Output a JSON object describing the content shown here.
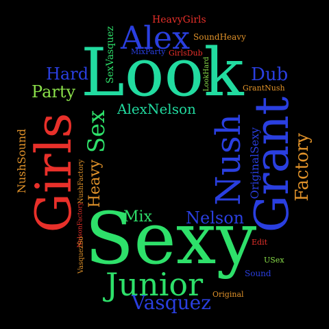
{
  "colors": {
    "background": "#000000",
    "red": "#e8302a",
    "green": "#2ee06a",
    "teal": "#22dba0",
    "blue": "#2a3fe0",
    "orange": "#e0922a",
    "lime": "#8be04a"
  },
  "words": {
    "look": "Look",
    "sexy": "Sexy",
    "girls": "Girls",
    "grant": "Grant",
    "nush": "Nush",
    "alex": "Alex",
    "junior": "Junior",
    "vasquez": "Vasquez",
    "sex": "Sex",
    "factory": "Factory",
    "alexnelson": "AlexNelson",
    "hard": "Hard",
    "party": "Party",
    "dub": "Dub",
    "nelson": "Nelson",
    "mix": "Mix",
    "heavy": "Heavy",
    "heavygirls": "HeavyGirls",
    "soundheavy": "SoundHeavy",
    "mixparty": "MixParty",
    "girlsdub": "GirlsDub",
    "sexvasquez": "SexVasquez",
    "lookhard": "LookHard",
    "grantnush": "GrantNush",
    "originalsexy": "OriginalSexy",
    "nushsound": "NushSound",
    "nushfactory": "NushFactory",
    "nelsonfactory": "NelsonFactory",
    "vasquezso": "VasquezSo",
    "edit": "Edit",
    "usex": "USex",
    "sound": "Sound",
    "original": "Original"
  }
}
